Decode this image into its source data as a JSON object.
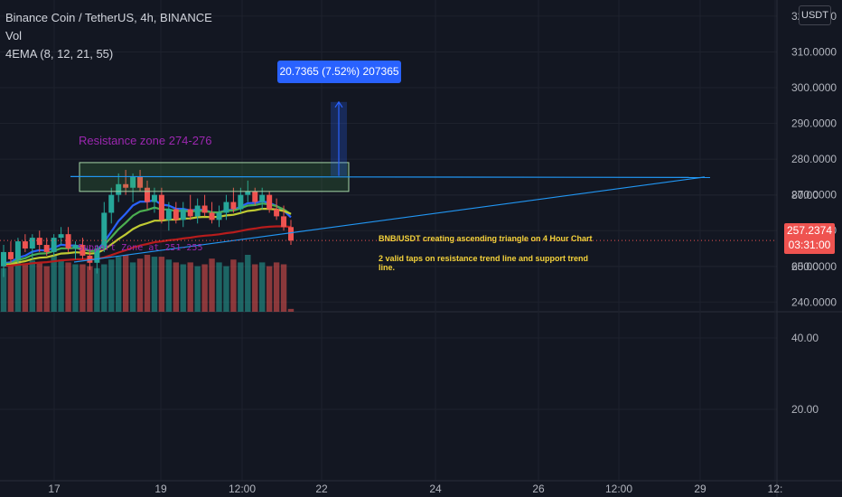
{
  "header": {
    "symbol_line": "Binance Coin / TetherUS, 4h, BINANCE",
    "vol_label": "Vol",
    "ema_label": "4EMA (8, 12, 21, 55)"
  },
  "currency_button": "USDT",
  "measure_label": "20.7365 (7.52%) 207365",
  "annotations": {
    "resistance": "Resistance zone 274-276",
    "support": "Support Zone at 251-255",
    "note_line1": "BNB/USDT creating ascending triangle on 4 Hour Chart",
    "note_line2": "2 valid taps on resistance trend line and support trend line."
  },
  "current_price": {
    "value": "257.2374",
    "countdown": "03:31:00"
  },
  "colors": {
    "background": "#131722",
    "up": "#26a69a",
    "down": "#ef5350",
    "ema8": "#2962ff",
    "ema12": "#4caf50",
    "ema21": "#c0ca33",
    "ema55": "#b71c1c",
    "trendline": "#2196f3",
    "annotation_text": "#9c27b0",
    "note_text": "#f5d33b"
  },
  "chart_data": {
    "type": "candlestick",
    "price_axis_labels": [
      "320.0000",
      "310.0000",
      "300.0000",
      "290.0000",
      "280.0000",
      "270.0000",
      "260.0000",
      "250.0000",
      "240.0000"
    ],
    "volume_axis_labels": [
      "80.00",
      "60.00",
      "40.00",
      "20.00"
    ],
    "x_axis_labels": [
      "17",
      "19",
      "12:00",
      "22",
      "24",
      "26",
      "12:00",
      "29",
      "12:"
    ],
    "ylim": [
      236,
      322
    ],
    "candles": [
      {
        "o": 250,
        "h": 256,
        "l": 247,
        "c": 254
      },
      {
        "o": 254,
        "h": 257,
        "l": 251,
        "c": 252
      },
      {
        "o": 252,
        "h": 258,
        "l": 251,
        "c": 257
      },
      {
        "o": 257,
        "h": 259,
        "l": 254,
        "c": 255
      },
      {
        "o": 255,
        "h": 259,
        "l": 252,
        "c": 258
      },
      {
        "o": 258,
        "h": 260,
        "l": 254,
        "c": 256
      },
      {
        "o": 256,
        "h": 258,
        "l": 253,
        "c": 254
      },
      {
        "o": 254,
        "h": 259,
        "l": 253,
        "c": 258
      },
      {
        "o": 258,
        "h": 261,
        "l": 256,
        "c": 259
      },
      {
        "o": 259,
        "h": 261,
        "l": 254,
        "c": 255
      },
      {
        "o": 255,
        "h": 257,
        "l": 252,
        "c": 256
      },
      {
        "o": 256,
        "h": 258,
        "l": 252,
        "c": 253
      },
      {
        "o": 253,
        "h": 256,
        "l": 249,
        "c": 251
      },
      {
        "o": 251,
        "h": 256,
        "l": 248,
        "c": 255
      },
      {
        "o": 255,
        "h": 268,
        "l": 254,
        "c": 265
      },
      {
        "o": 265,
        "h": 272,
        "l": 262,
        "c": 270
      },
      {
        "o": 270,
        "h": 276,
        "l": 268,
        "c": 273
      },
      {
        "o": 273,
        "h": 277,
        "l": 270,
        "c": 272
      },
      {
        "o": 272,
        "h": 276,
        "l": 268,
        "c": 275
      },
      {
        "o": 275,
        "h": 277,
        "l": 271,
        "c": 272
      },
      {
        "o": 272,
        "h": 274,
        "l": 266,
        "c": 268
      },
      {
        "o": 268,
        "h": 272,
        "l": 265,
        "c": 270
      },
      {
        "o": 270,
        "h": 272,
        "l": 262,
        "c": 263
      },
      {
        "o": 263,
        "h": 268,
        "l": 260,
        "c": 266
      },
      {
        "o": 266,
        "h": 268,
        "l": 262,
        "c": 263
      },
      {
        "o": 263,
        "h": 268,
        "l": 261,
        "c": 266
      },
      {
        "o": 266,
        "h": 270,
        "l": 263,
        "c": 264
      },
      {
        "o": 264,
        "h": 269,
        "l": 262,
        "c": 267
      },
      {
        "o": 267,
        "h": 270,
        "l": 264,
        "c": 265
      },
      {
        "o": 265,
        "h": 268,
        "l": 262,
        "c": 263
      },
      {
        "o": 263,
        "h": 267,
        "l": 261,
        "c": 265
      },
      {
        "o": 265,
        "h": 270,
        "l": 263,
        "c": 268
      },
      {
        "o": 268,
        "h": 272,
        "l": 265,
        "c": 266
      },
      {
        "o": 266,
        "h": 272,
        "l": 265,
        "c": 270
      },
      {
        "o": 270,
        "h": 274,
        "l": 268,
        "c": 271
      },
      {
        "o": 271,
        "h": 272,
        "l": 267,
        "c": 268
      },
      {
        "o": 268,
        "h": 272,
        "l": 266,
        "c": 270
      },
      {
        "o": 270,
        "h": 271,
        "l": 265,
        "c": 266
      },
      {
        "o": 266,
        "h": 269,
        "l": 263,
        "c": 264
      },
      {
        "o": 264,
        "h": 267,
        "l": 260,
        "c": 261
      },
      {
        "o": 261,
        "h": 263,
        "l": 256,
        "c": 257.2
      }
    ],
    "volumes": [
      46,
      52,
      56,
      50,
      54,
      52,
      48,
      60,
      55,
      52,
      50,
      50,
      48,
      46,
      50,
      55,
      58,
      60,
      52,
      56,
      60,
      58,
      58,
      55,
      52,
      50,
      52,
      48,
      50,
      56,
      52,
      48,
      55,
      52,
      60,
      50,
      52,
      48,
      52,
      50,
      3
    ],
    "resistance_zone": {
      "from": 274,
      "to": 276
    },
    "resistance_line": 275,
    "measure": {
      "from": 275.3,
      "to": 296.0
    },
    "current_price": 257.2374
  }
}
